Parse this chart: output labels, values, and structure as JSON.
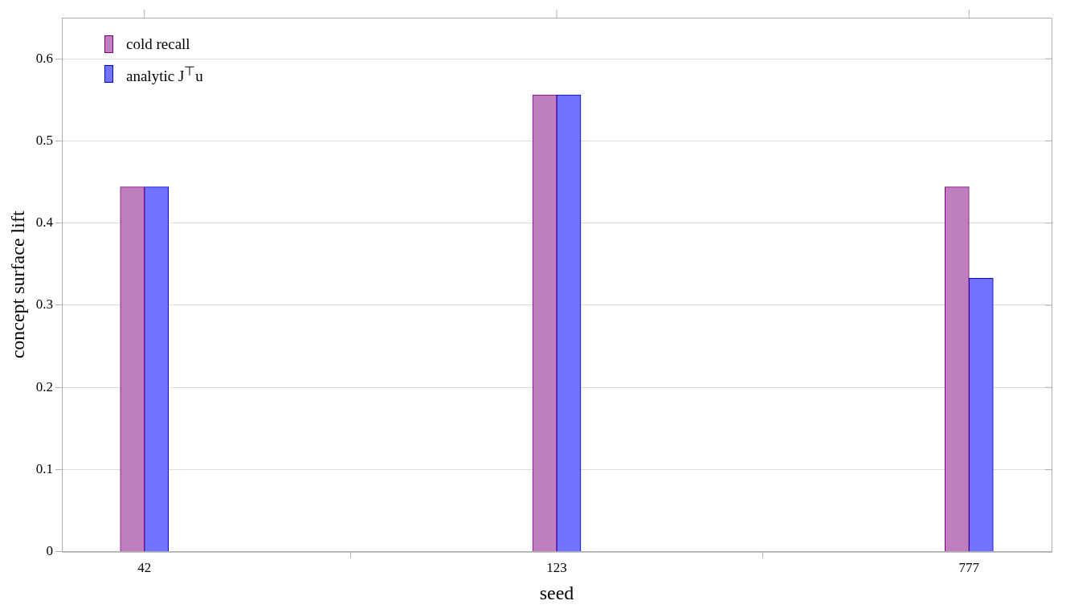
{
  "chart_data": {
    "type": "bar",
    "xlabel": "seed",
    "ylabel": "concept surface lift",
    "categories": [
      "42",
      "123",
      "777"
    ],
    "series": [
      {
        "name": "cold recall",
        "color": "#bf7fbf",
        "values": [
          0.444,
          0.556,
          0.444
        ]
      },
      {
        "name": "analytic J$^{⊤}$u",
        "color": "#7373ff",
        "values": [
          0.444,
          0.556,
          0.333
        ]
      }
    ],
    "ylim": [
      0,
      0.65
    ],
    "yticks": [
      0,
      0.1,
      0.2,
      0.3,
      0.4,
      0.5,
      0.6
    ],
    "grid": "y",
    "legend": "top left"
  }
}
